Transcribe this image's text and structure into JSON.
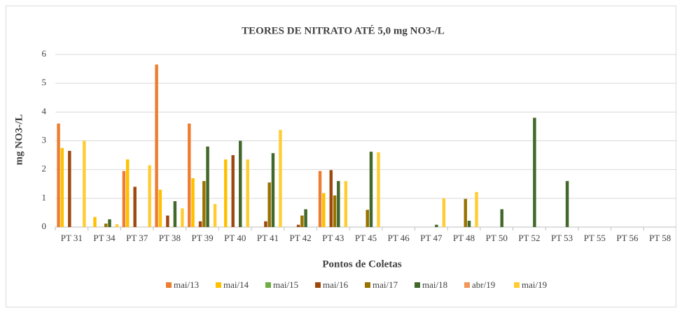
{
  "chart_data": {
    "type": "bar",
    "title": "TEORES DE NITRATO  ATÉ 5,0 mg NO3-/L",
    "y_label": "mg NO3-/L",
    "x_label": "Pontos de Coletas",
    "categories": [
      "PT 31",
      "PT 34",
      "PT 37",
      "PT 38",
      "PT 39",
      "PT 40",
      "PT 41",
      "PT 42",
      "PT 43",
      "PT 45",
      "PT 46",
      "PT 47",
      "PT 48",
      "PT 50",
      "PT 52",
      "PT 53",
      "PT 55",
      "PT 56",
      "PT 58"
    ],
    "series": [
      {
        "name": "mai/13",
        "color": "#ed7d31",
        "values": [
          3.6,
          null,
          1.95,
          5.65,
          3.6,
          null,
          null,
          null,
          1.95,
          null,
          null,
          null,
          null,
          null,
          null,
          null,
          null,
          null,
          null
        ]
      },
      {
        "name": "mai/14",
        "color": "#ffc000",
        "values": [
          2.75,
          0.35,
          2.35,
          1.3,
          1.7,
          2.35,
          null,
          null,
          1.18,
          null,
          null,
          null,
          null,
          null,
          null,
          null,
          null,
          null,
          null
        ]
      },
      {
        "name": "mai/15",
        "color": "#70ad47",
        "values": [
          null,
          null,
          null,
          null,
          null,
          null,
          null,
          null,
          null,
          null,
          null,
          null,
          null,
          null,
          null,
          null,
          null,
          null,
          null
        ]
      },
      {
        "name": "mai/16",
        "color": "#9e480e",
        "values": [
          2.65,
          null,
          1.4,
          0.4,
          0.2,
          2.5,
          0.2,
          0.08,
          1.98,
          null,
          null,
          null,
          null,
          null,
          null,
          null,
          null,
          null,
          null
        ]
      },
      {
        "name": "mai/17",
        "color": "#997300",
        "values": [
          null,
          0.12,
          null,
          null,
          1.6,
          null,
          1.55,
          0.4,
          1.1,
          0.6,
          null,
          null,
          0.98,
          null,
          null,
          null,
          null,
          null,
          null
        ]
      },
      {
        "name": "mai/18",
        "color": "#43682b",
        "values": [
          null,
          0.27,
          null,
          0.9,
          2.8,
          3.0,
          2.57,
          0.62,
          1.6,
          2.62,
          null,
          0.08,
          0.22,
          0.62,
          3.8,
          1.6,
          null,
          null,
          null
        ]
      },
      {
        "name": "abr/19",
        "color": "#f1975a",
        "values": [
          null,
          null,
          null,
          null,
          null,
          null,
          null,
          null,
          null,
          null,
          null,
          null,
          null,
          null,
          null,
          null,
          null,
          null,
          null
        ]
      },
      {
        "name": "mai/19",
        "color": "#ffcd33",
        "values": [
          3.0,
          0.1,
          2.15,
          0.65,
          0.8,
          2.35,
          3.38,
          null,
          1.6,
          2.6,
          null,
          1.0,
          1.22,
          null,
          null,
          null,
          null,
          null,
          null
        ]
      }
    ],
    "ylim": [
      0,
      6
    ],
    "yticks": [
      0,
      1,
      2,
      3,
      4,
      5,
      6
    ],
    "grid": true,
    "legend": "bottom"
  }
}
